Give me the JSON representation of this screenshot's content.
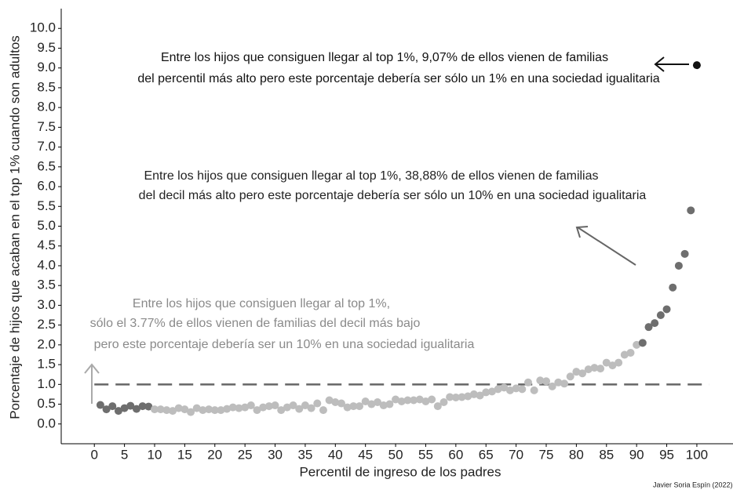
{
  "chart_data": {
    "type": "scatter",
    "ylabel": "Porcentaje de hijos que acaban en el top 1% cuando son adultos",
    "xlabel": "Percentil de ingreso de los padres",
    "credit": "Javier Soria Espín (2022)",
    "xlim": [
      -5.5,
      106
    ],
    "ylim": [
      -0.5,
      10.5
    ],
    "xticks": [
      0,
      5,
      10,
      15,
      20,
      25,
      30,
      35,
      40,
      45,
      50,
      55,
      60,
      65,
      70,
      75,
      80,
      85,
      90,
      95,
      100
    ],
    "yticks": [
      {
        "value": 0,
        "label": "0.0"
      },
      {
        "value": 0.5,
        "label": "0.5"
      },
      {
        "value": 1,
        "label": "1.0"
      },
      {
        "value": 1.5,
        "label": "1.5"
      },
      {
        "value": 2,
        "label": "2.0"
      },
      {
        "value": 2.5,
        "label": "2.5"
      },
      {
        "value": 3,
        "label": "3.0"
      },
      {
        "value": 3.5,
        "label": "3.5"
      },
      {
        "value": 4,
        "label": "4.0"
      },
      {
        "value": 4.5,
        "label": "4.5"
      },
      {
        "value": 5,
        "label": "5.0"
      },
      {
        "value": 5.5,
        "label": "5.5"
      },
      {
        "value": 6,
        "label": "6.0"
      },
      {
        "value": 6.5,
        "label": "6.5"
      },
      {
        "value": 7,
        "label": "7.0"
      },
      {
        "value": 7.5,
        "label": "7.5"
      },
      {
        "value": 8,
        "label": "8.0"
      },
      {
        "value": 8.5,
        "label": "8.5"
      },
      {
        "value": 9,
        "label": "9.0"
      },
      {
        "value": 9.5,
        "label": "9.5"
      },
      {
        "value": 10,
        "label": "10.0"
      }
    ],
    "hline": 1.0,
    "hline_color": "#666",
    "series": [
      {
        "color": "#6e6e6e",
        "x": [
          1,
          2,
          3,
          4,
          5,
          6,
          7,
          8,
          9
        ],
        "values": [
          0.48,
          0.37,
          0.45,
          0.33,
          0.4,
          0.46,
          0.38,
          0.45,
          0.44
        ]
      },
      {
        "color": "#bdbdbd",
        "x": [
          10,
          11,
          12,
          13,
          14,
          15,
          16,
          17,
          18,
          19,
          20,
          21,
          22,
          23,
          24,
          25,
          26,
          27,
          28,
          29,
          30,
          31,
          32,
          33,
          34,
          35,
          36,
          37,
          38,
          39,
          40,
          41,
          42,
          43,
          44,
          45,
          46,
          47,
          48,
          49,
          50,
          51,
          52,
          53,
          54,
          55,
          56,
          57,
          58,
          59,
          60,
          61,
          62,
          63,
          64,
          65,
          66,
          67,
          68,
          69,
          70,
          71,
          72,
          73,
          74,
          75,
          76,
          77,
          78,
          79,
          80,
          81,
          82,
          83,
          84,
          85,
          86,
          87,
          88,
          89,
          90
        ],
        "values": [
          0.37,
          0.37,
          0.35,
          0.33,
          0.4,
          0.37,
          0.3,
          0.4,
          0.35,
          0.37,
          0.35,
          0.35,
          0.38,
          0.42,
          0.4,
          0.42,
          0.47,
          0.35,
          0.42,
          0.45,
          0.47,
          0.35,
          0.42,
          0.47,
          0.38,
          0.47,
          0.4,
          0.52,
          0.35,
          0.6,
          0.55,
          0.52,
          0.42,
          0.45,
          0.45,
          0.57,
          0.5,
          0.55,
          0.47,
          0.5,
          0.62,
          0.57,
          0.6,
          0.6,
          0.62,
          0.57,
          0.62,
          0.45,
          0.55,
          0.68,
          0.67,
          0.68,
          0.7,
          0.75,
          0.72,
          0.8,
          0.82,
          0.88,
          0.92,
          0.85,
          0.9,
          0.88,
          1.05,
          0.85,
          1.1,
          1.08,
          0.95,
          1.05,
          1.02,
          1.2,
          1.32,
          1.28,
          1.38,
          1.42,
          1.4,
          1.55,
          1.48,
          1.55,
          1.75,
          1.8,
          2.0
        ]
      },
      {
        "color": "#6e6e6e",
        "x": [
          91,
          92,
          93,
          94,
          95,
          96,
          97,
          98,
          99
        ],
        "values": [
          2.05,
          2.45,
          2.55,
          2.75,
          2.9,
          3.45,
          4.0,
          4.3,
          5.4
        ]
      },
      {
        "color": "#111111",
        "x": [
          100
        ],
        "values": [
          9.07
        ]
      }
    ],
    "annotations": [
      {
        "lines": [
          "Entre los hijos que consiguen llegar al top 1%, 9,07% de ellos vienen de familias",
          "del percentil más alto pero este porcentaje debería ser sólo un 1% en una sociedad igualitaria"
        ],
        "color": "#111111"
      },
      {
        "lines": [
          "Entre los hijos que consiguen llegar al top 1%, 38,88% de ellos vienen de familias",
          "del decil más alto pero este porcentaje debería ser sólo un 10% en una sociedad igualitaria"
        ],
        "color": "#222222"
      },
      {
        "lines": [
          "Entre los hijos que consiguen llegar al top 1%,",
          "sólo el 3.77% de ellos vienen de familias del decil más bajo",
          "pero este porcentaje debería ser  un 10% en una sociedad igualitaria"
        ],
        "color": "#8a8a8a"
      }
    ]
  }
}
